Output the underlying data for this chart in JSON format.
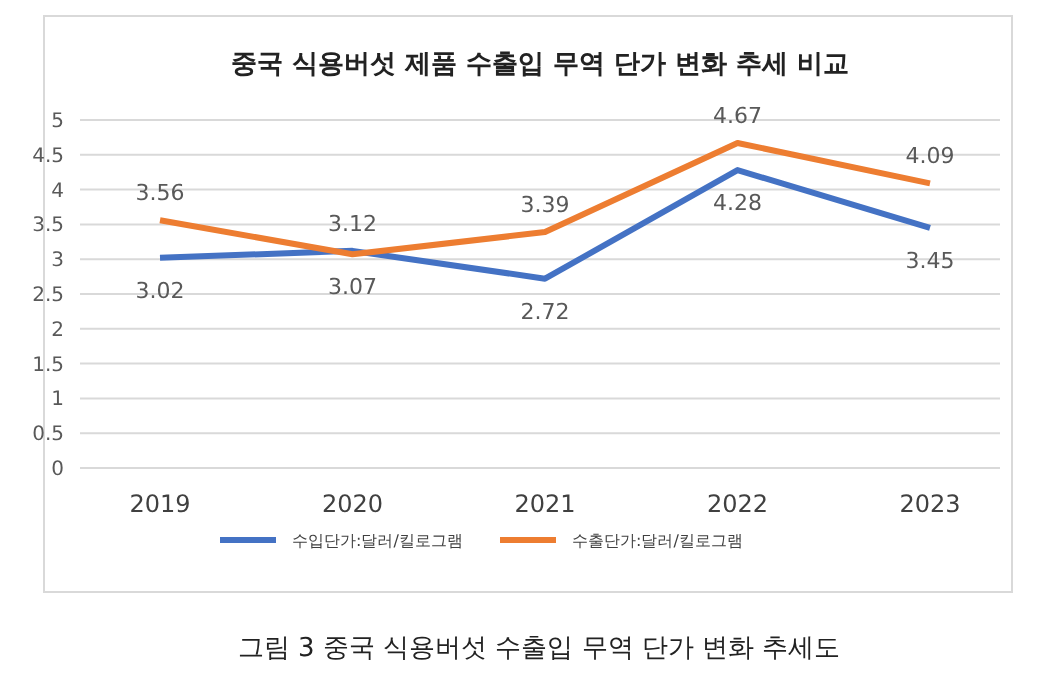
{
  "chart_data": {
    "type": "line",
    "title": "중국 식용버섯 제품 수출입 무역 단가 변화 추세 비교",
    "categories": [
      "2019",
      "2020",
      "2021",
      "2022",
      "2023"
    ],
    "series": [
      {
        "name": "수입단가:달러/킬로그램",
        "color": "#4472c4",
        "values": [
          3.02,
          3.12,
          2.72,
          4.28,
          3.45
        ]
      },
      {
        "name": "수출단가:달러/킬로그램",
        "color": "#ed7d31",
        "values": [
          3.56,
          3.07,
          3.39,
          4.67,
          4.09
        ]
      }
    ],
    "ylim": [
      0,
      5
    ],
    "yticks": [
      0,
      0.5,
      1,
      1.5,
      2,
      2.5,
      3,
      3.5,
      4,
      4.5,
      5
    ],
    "grid": "y",
    "legend": "bottom",
    "data_labels": true,
    "marker": "none",
    "annotations": [
      "그림 3 중국 식용버섯 수출입 무역 단가 변화 추세도"
    ]
  }
}
